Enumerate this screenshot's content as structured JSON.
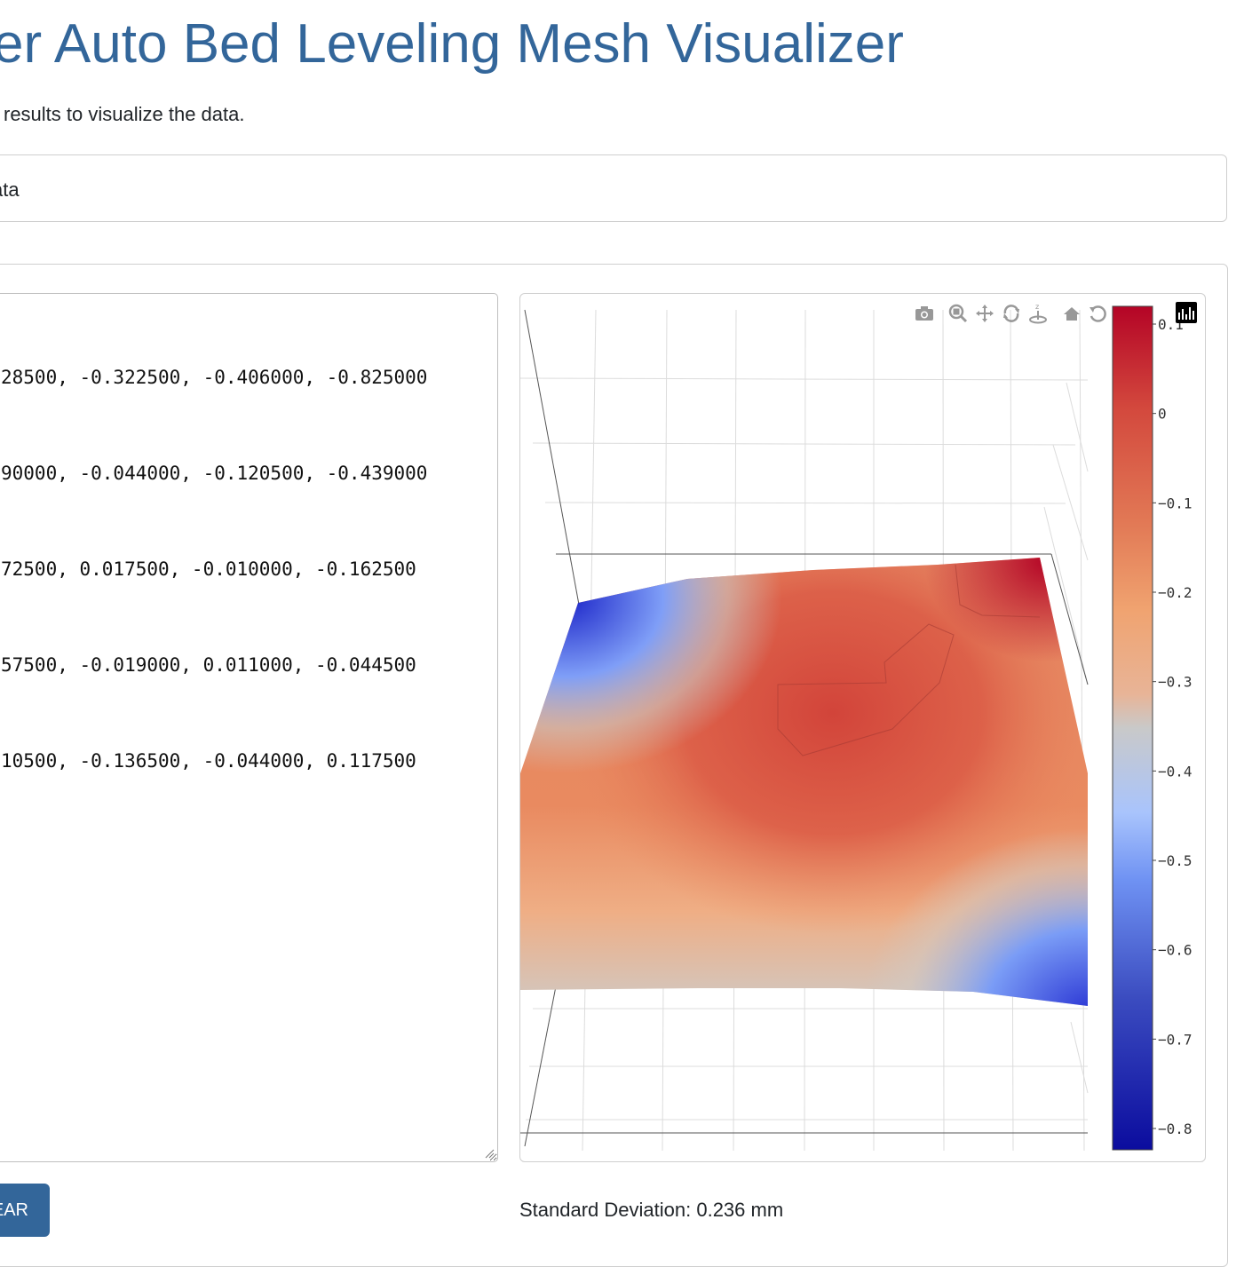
{
  "page": {
    "title": "er Auto Bed Leveling Mesh Visualizer",
    "subtitle": "results to visualize the data."
  },
  "input_card": {
    "header_label": "ata"
  },
  "data_input": {
    "lines": [
      "28500, -0.322500, -0.406000, -0.825000",
      "90000, -0.044000, -0.120500, -0.439000",
      "72500, 0.017500, -0.010000, -0.162500",
      "57500, -0.019000, 0.011000, -0.044500",
      "10500, -0.136500, -0.044000, 0.117500"
    ]
  },
  "plot": {
    "modebar": [
      "camera-icon",
      "zoom-icon",
      "pan-icon",
      "orbit-rotation-icon",
      "turntable-rotation-icon",
      "reset-camera-icon",
      "home-icon",
      "plotly-logo-icon"
    ],
    "colorbar_ticks": [
      "0.1",
      "0",
      "−0.1",
      "−0.2",
      "−0.3",
      "−0.4",
      "−0.5",
      "−0.6",
      "−0.7",
      "−0.8"
    ],
    "colorscale": [
      "#0b0c9e",
      "#3b4cc0",
      "#6f92f3",
      "#a9c4fc",
      "#c9c9c9",
      "#e8b497",
      "#f0a370",
      "#e27a56",
      "#d3483d",
      "#b40426"
    ]
  },
  "actions": {
    "clear_label": "EAR"
  },
  "stats": {
    "std_dev_text": "Standard Deviation: 0.236 mm"
  },
  "chart_data": {
    "type": "surface",
    "colorbar_range": [
      -0.85,
      0.12
    ],
    "rows_partial": [
      [
        -0.3225,
        -0.406,
        -0.825
      ],
      [
        -0.044,
        -0.1205,
        -0.439
      ],
      [
        0.0175,
        -0.01,
        -0.1625
      ],
      [
        -0.019,
        0.011,
        -0.0445
      ],
      [
        -0.1365,
        -0.044,
        0.1175
      ]
    ]
  }
}
